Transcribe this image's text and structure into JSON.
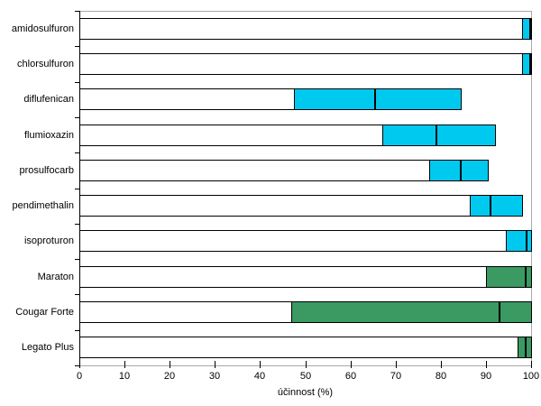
{
  "chart_data": {
    "type": "bar",
    "orientation": "horizontal",
    "title": "",
    "xlabel": "účinnost (%)",
    "ylabel": "",
    "xlim": [
      0,
      100
    ],
    "x_ticks": [
      0,
      10,
      20,
      30,
      40,
      50,
      60,
      70,
      80,
      90,
      100
    ],
    "grid": false,
    "legend": null,
    "description": "Each bar spans 0 to max with white fill; the colored segment marks the min–max range; the black vertical tick marks the mean value.",
    "categories": [
      "amidosulfuron",
      "chlorsulfuron",
      "diflufenican",
      "flumioxazin",
      "prosulfocarb",
      "pendimethalin",
      "isoproturon",
      "Maraton",
      "Cougar Forte",
      "Legato Plus"
    ],
    "bars": [
      {
        "label": "amidosulfuron",
        "range_min": 98,
        "range_max": 100,
        "mean": 99.8,
        "color": "#00C9F0"
      },
      {
        "label": "chlorsulfuron",
        "range_min": 98,
        "range_max": 100,
        "mean": 99.8,
        "color": "#00C9F0"
      },
      {
        "label": "diflufenican",
        "range_min": 47.5,
        "range_max": 84.5,
        "mean": 65.5,
        "color": "#00C9F0"
      },
      {
        "label": "flumioxazin",
        "range_min": 67,
        "range_max": 92,
        "mean": 79,
        "color": "#00C9F0"
      },
      {
        "label": "prosulfocarb",
        "range_min": 77.5,
        "range_max": 90.5,
        "mean": 84.5,
        "color": "#00C9F0"
      },
      {
        "label": "pendimethalin",
        "range_min": 86.5,
        "range_max": 98,
        "mean": 91,
        "color": "#00C9F0"
      },
      {
        "label": "isoproturon",
        "range_min": 94.5,
        "range_max": 100,
        "mean": 99,
        "color": "#00C9F0"
      },
      {
        "label": "Maraton",
        "range_min": 90,
        "range_max": 100,
        "mean": 98.8,
        "color": "#3A9A62"
      },
      {
        "label": "Cougar Forte",
        "range_min": 47,
        "range_max": 100,
        "mean": 93,
        "color": "#3A9A62"
      },
      {
        "label": "Legato Plus",
        "range_min": 97,
        "range_max": 100,
        "mean": 98.8,
        "color": "#3A9A62"
      }
    ],
    "colors": {
      "active_substance_range": "#00C9F0",
      "product_range": "#3A9A62",
      "bar_base_fill": "#FFFFFF",
      "bar_border": "#000000",
      "mean_tick": "#000000",
      "plot_border": "#A9A9A9",
      "text": "#000000"
    }
  }
}
